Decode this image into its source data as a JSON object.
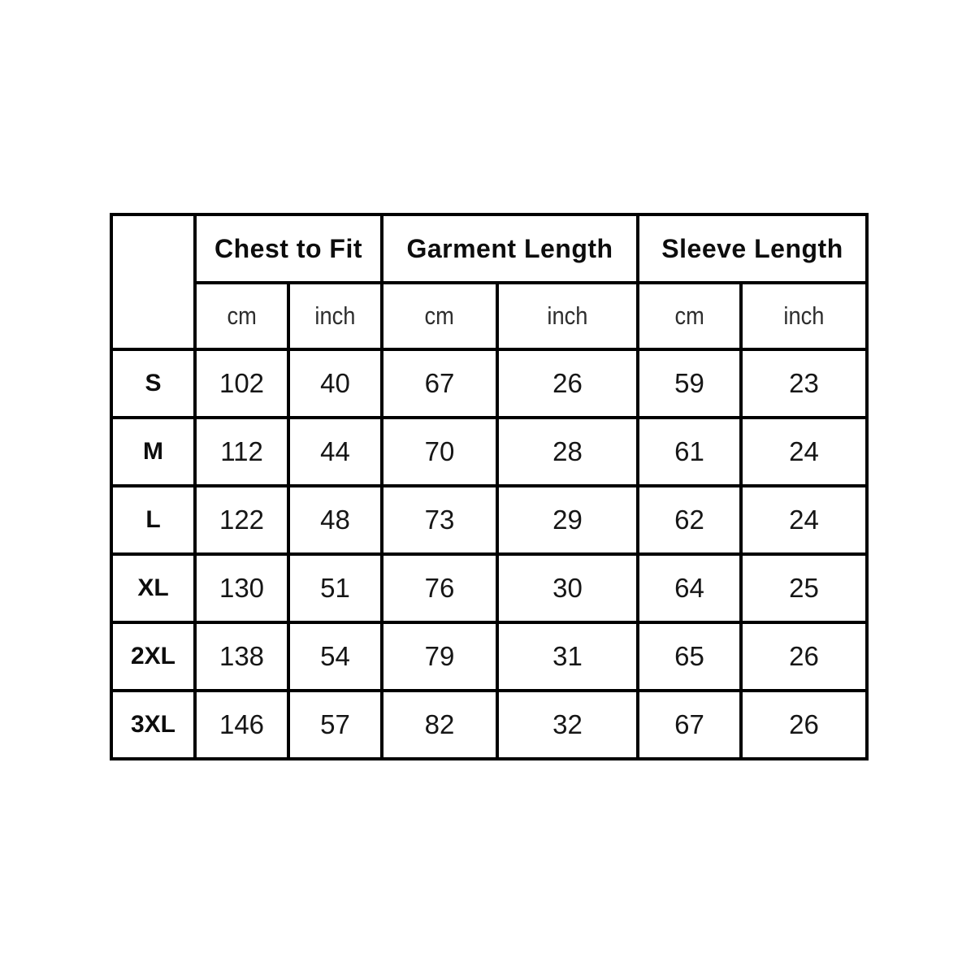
{
  "chart_data": {
    "type": "table",
    "title": "",
    "column_groups": [
      {
        "label": "Chest to Fit",
        "units": [
          "cm",
          "inch"
        ]
      },
      {
        "label": "Garment Length",
        "units": [
          "cm",
          "inch"
        ]
      },
      {
        "label": "Sleeve Length",
        "units": [
          "cm",
          "inch"
        ]
      }
    ],
    "unit_row": [
      "cm",
      "inch",
      "cm",
      "inch",
      "cm",
      "inch"
    ],
    "rows": [
      {
        "size": "S",
        "values": [
          "102",
          "40",
          "67",
          "26",
          "59",
          "23"
        ]
      },
      {
        "size": "M",
        "values": [
          "112",
          "44",
          "70",
          "28",
          "61",
          "24"
        ]
      },
      {
        "size": "L",
        "values": [
          "122",
          "48",
          "73",
          "29",
          "62",
          "24"
        ]
      },
      {
        "size": "XL",
        "values": [
          "130",
          "51",
          "76",
          "30",
          "64",
          "25"
        ]
      },
      {
        "size": "2XL",
        "values": [
          "138",
          "54",
          "79",
          "31",
          "65",
          "26"
        ]
      },
      {
        "size": "3XL",
        "values": [
          "146",
          "57",
          "82",
          "32",
          "67",
          "26"
        ]
      }
    ],
    "colors": {
      "border": "#000000",
      "header_text": "#0d0d0d",
      "unit_text": "#2e2e2e",
      "value_text": "#161616",
      "background": "#ffffff"
    },
    "layout_hints": {
      "grid": "all-cells-bordered",
      "corner_cell": "empty-borderless",
      "header_bold": true
    }
  }
}
